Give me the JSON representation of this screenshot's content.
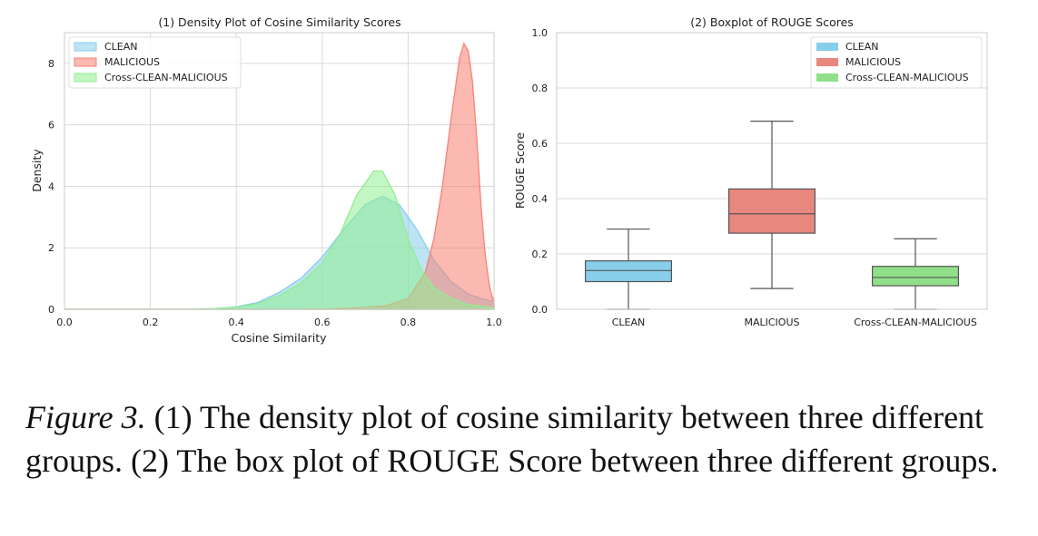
{
  "caption": {
    "label": "Figure 3.",
    "text": " (1) The density plot of cosine similarity between three different groups. (2) The box plot of ROUGE Score between three different groups."
  },
  "chart_data": [
    {
      "type": "area",
      "title": "(1) Density Plot of Cosine Similarity Scores",
      "xlabel": "Cosine Similarity",
      "ylabel": "Density",
      "xlim": [
        0.0,
        1.0
      ],
      "ylim": [
        0,
        9.0
      ],
      "xticks": [
        "0.0",
        "0.2",
        "0.4",
        "0.6",
        "0.8",
        "1.0"
      ],
      "yticks": [
        "0",
        "2",
        "4",
        "6",
        "8"
      ],
      "grid": true,
      "legend_position": "top-left",
      "series": [
        {
          "name": "CLEAN",
          "color": "#87ceeb",
          "x": [
            0.0,
            0.3,
            0.35,
            0.4,
            0.45,
            0.5,
            0.55,
            0.6,
            0.65,
            0.7,
            0.74,
            0.78,
            0.82,
            0.86,
            0.9,
            0.94,
            0.97,
            1.0
          ],
          "y": [
            0.0,
            0.0,
            0.02,
            0.08,
            0.22,
            0.55,
            1.0,
            1.7,
            2.6,
            3.4,
            3.68,
            3.4,
            2.6,
            1.6,
            0.9,
            0.5,
            0.35,
            0.25
          ]
        },
        {
          "name": "MALICIOUS",
          "color": "#fa8072",
          "x": [
            0.0,
            0.55,
            0.6,
            0.65,
            0.7,
            0.75,
            0.8,
            0.84,
            0.86,
            0.88,
            0.9,
            0.92,
            0.93,
            0.94,
            0.95,
            0.96,
            0.97,
            0.98,
            0.99,
            1.0
          ],
          "y": [
            0.0,
            0.0,
            0.01,
            0.03,
            0.06,
            0.12,
            0.35,
            1.2,
            2.3,
            4.0,
            6.2,
            8.2,
            8.65,
            8.4,
            7.4,
            5.5,
            3.3,
            1.7,
            0.7,
            0.2
          ]
        },
        {
          "name": "Cross-CLEAN-MALICIOUS",
          "color": "#90ee90",
          "x": [
            0.0,
            0.3,
            0.35,
            0.4,
            0.45,
            0.5,
            0.55,
            0.6,
            0.64,
            0.68,
            0.72,
            0.74,
            0.77,
            0.8,
            0.83,
            0.86,
            0.9,
            0.94,
            1.0
          ],
          "y": [
            0.0,
            0.0,
            0.02,
            0.07,
            0.18,
            0.45,
            0.85,
            1.5,
            2.4,
            3.7,
            4.5,
            4.5,
            3.7,
            2.3,
            1.3,
            0.7,
            0.35,
            0.15,
            0.05
          ]
        }
      ]
    },
    {
      "type": "box",
      "title": "(2) Boxplot of ROUGE Scores",
      "xlabel": "",
      "ylabel": "ROUGE Score",
      "ylim": [
        0.0,
        1.0
      ],
      "yticks": [
        "0.0",
        "0.2",
        "0.4",
        "0.6",
        "0.8",
        "1.0"
      ],
      "categories": [
        "CLEAN",
        "MALICIOUS",
        "Cross-CLEAN-MALICIOUS"
      ],
      "grid": true,
      "legend_position": "top-right",
      "series": [
        {
          "name": "CLEAN",
          "color": "#87ceeb",
          "min": 0.0,
          "q1": 0.1,
          "median": 0.14,
          "q3": 0.175,
          "max": 0.29
        },
        {
          "name": "MALICIOUS",
          "color": "#e8877d",
          "min": 0.075,
          "q1": 0.275,
          "median": 0.345,
          "q3": 0.435,
          "max": 0.68
        },
        {
          "name": "Cross-CLEAN-MALICIOUS",
          "color": "#90e08a",
          "min": 0.0,
          "q1": 0.085,
          "median": 0.115,
          "q3": 0.155,
          "max": 0.255
        }
      ]
    }
  ]
}
